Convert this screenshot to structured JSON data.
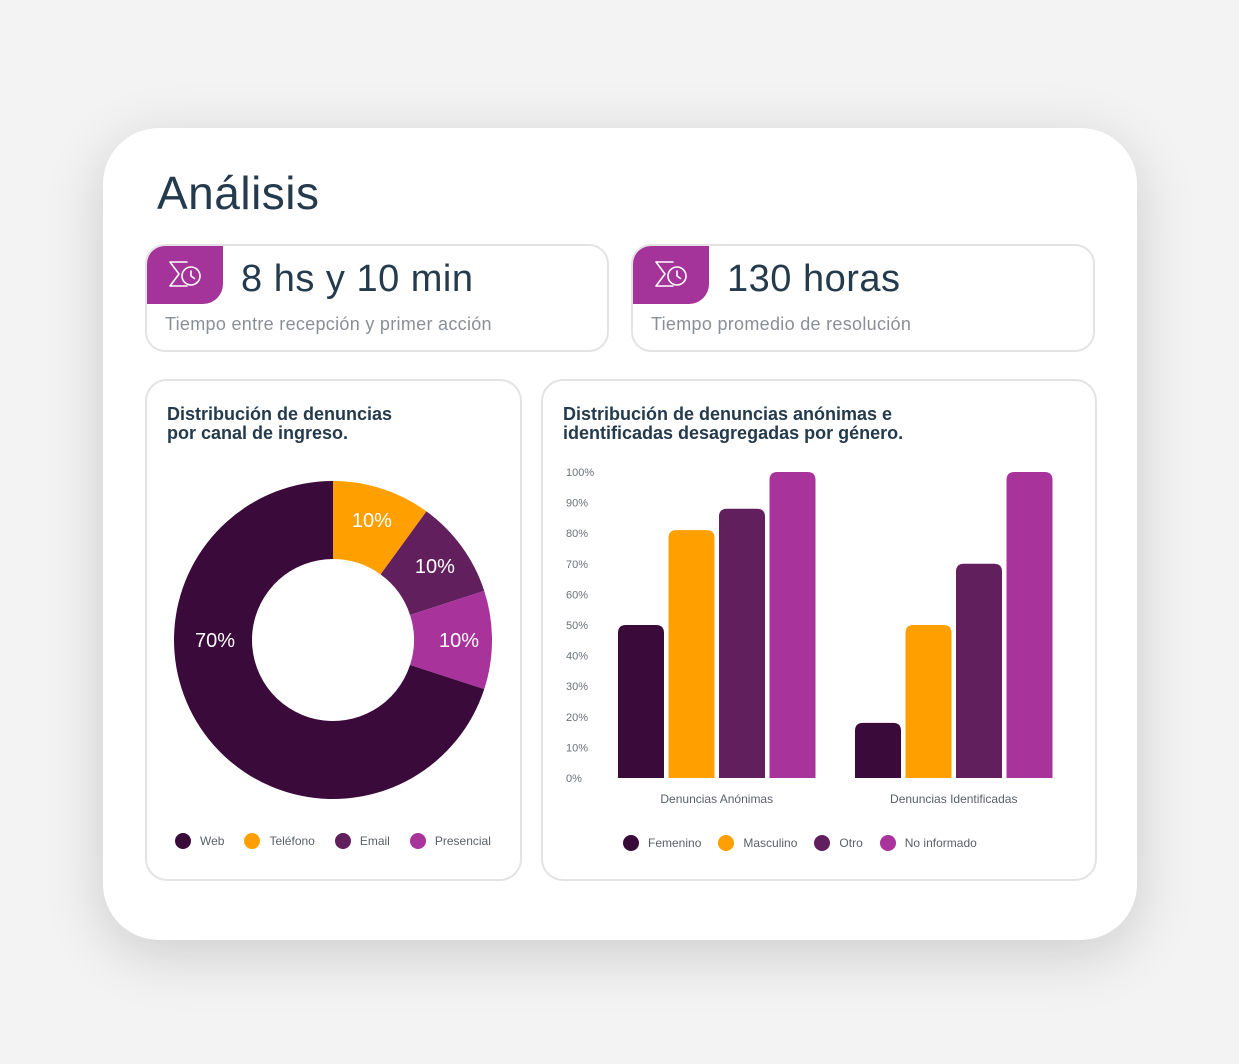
{
  "title": "Análisis",
  "stats": [
    {
      "value": "8 hs y 10 min",
      "label": "Tiempo entre recepción y primer acción",
      "icon": "sigma-clock-icon"
    },
    {
      "value": "130 horas",
      "label": "Tiempo promedio de resolución",
      "icon": "sigma-clock-icon"
    }
  ],
  "colors": {
    "web": "#3a0a3a",
    "telefono": "#ffa000",
    "email": "#621f5e",
    "presencial": "#a8339b",
    "accent": "#a4339a",
    "text": "#243a4d"
  },
  "legend_pie": [
    "Web",
    "Teléfono",
    "Email",
    "Presencial"
  ],
  "legend_bar": [
    "Femenino",
    "Masculino",
    "Otro",
    "No informado"
  ],
  "chart_data": [
    {
      "type": "pie",
      "title": "Distribución de denuncias\npor canal de ingreso.",
      "categories": [
        "Web",
        "Teléfono",
        "Email",
        "Presencial"
      ],
      "values": [
        70,
        10,
        10,
        10
      ],
      "labels": [
        "70%",
        "10%",
        "10%",
        "10%"
      ],
      "colors": [
        "#3a0a3a",
        "#ffa000",
        "#621f5e",
        "#a8339b"
      ],
      "donut": true,
      "legend": "bottom"
    },
    {
      "type": "bar",
      "title": "Distribución de denuncias anónimas e\nidentificadas desagregadas por género.",
      "categories": [
        "Denuncias Anónimas",
        "Denuncias Identificadas"
      ],
      "series": [
        {
          "name": "Femenino",
          "values": [
            50,
            18
          ],
          "color": "#3a0a3a"
        },
        {
          "name": "Masculino",
          "values": [
            81,
            50
          ],
          "color": "#ffa000"
        },
        {
          "name": "Otro",
          "values": [
            88,
            70
          ],
          "color": "#621f5e"
        },
        {
          "name": "No informado",
          "values": [
            100,
            100
          ],
          "color": "#a8339b"
        }
      ],
      "yticks": [
        "0%",
        "10%",
        "20%",
        "30%",
        "40%",
        "50%",
        "60%",
        "70%",
        "80%",
        "90%",
        "100%"
      ],
      "ylim": [
        0,
        100
      ],
      "grid": false,
      "legend": "bottom"
    }
  ]
}
